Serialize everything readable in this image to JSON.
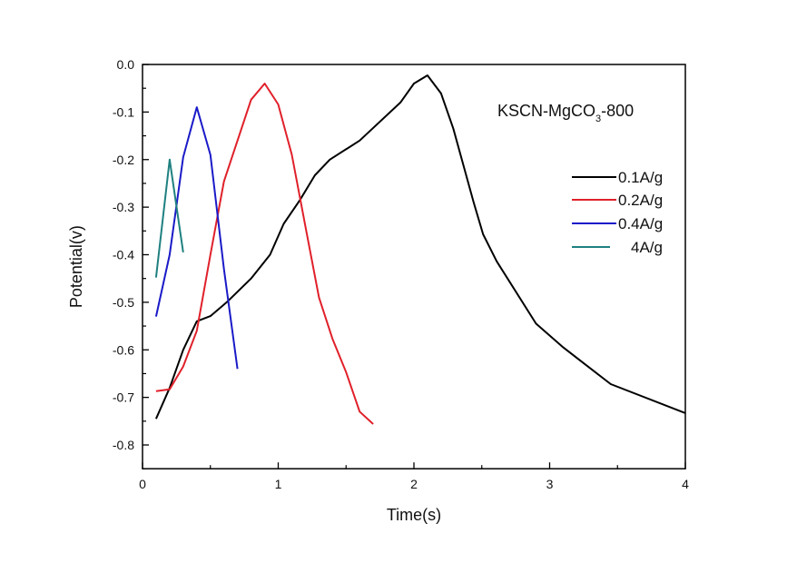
{
  "chart_data": {
    "type": "line",
    "title": "",
    "xlabel": "Time(s)",
    "ylabel": "Potential(v)",
    "xlim": [
      0,
      4
    ],
    "ylim": [
      -0.85,
      0.0
    ],
    "xticks": [
      0,
      1,
      2,
      3,
      4
    ],
    "xtick_labels": [
      "0",
      "1",
      "2",
      "3",
      "4"
    ],
    "yticks": [
      0.0,
      -0.1,
      -0.2,
      -0.3,
      -0.4,
      -0.5,
      -0.6,
      -0.7,
      -0.8
    ],
    "ytick_labels": [
      "0.0",
      "-0.1",
      "-0.2",
      "-0.3",
      "-0.4",
      "-0.5",
      "-0.6",
      "-0.7",
      "-0.8"
    ],
    "grid": false,
    "annotation": {
      "main": "KSCN-MgCO",
      "sub": "3",
      "tail": "-800"
    },
    "legend_position": "right",
    "series": [
      {
        "name": "0.1A/g",
        "color": "#000000",
        "x": [
          0.1,
          0.2,
          0.3,
          0.4,
          0.5,
          0.62,
          0.8,
          0.94,
          1.04,
          1.16,
          1.27,
          1.38,
          1.6,
          1.9,
          2.0,
          2.1,
          2.2,
          2.29,
          2.44,
          2.51,
          2.61,
          2.9,
          3.1,
          3.45,
          4.0
        ],
        "y": [
          -0.745,
          -0.68,
          -0.6,
          -0.54,
          -0.529,
          -0.5,
          -0.45,
          -0.4,
          -0.335,
          -0.285,
          -0.233,
          -0.2,
          -0.16,
          -0.08,
          -0.04,
          -0.023,
          -0.061,
          -0.135,
          -0.29,
          -0.357,
          -0.414,
          -0.545,
          -0.595,
          -0.672,
          -0.733
        ]
      },
      {
        "name": "0.2A/g",
        "color": "#e0202a",
        "x": [
          0.1,
          0.2,
          0.3,
          0.4,
          0.5,
          0.6,
          0.8,
          0.9,
          1.0,
          1.1,
          1.2,
          1.3,
          1.4,
          1.5,
          1.6,
          1.7
        ],
        "y": [
          -0.687,
          -0.683,
          -0.635,
          -0.56,
          -0.4,
          -0.246,
          -0.074,
          -0.04,
          -0.084,
          -0.19,
          -0.34,
          -0.49,
          -0.577,
          -0.647,
          -0.73,
          -0.756
        ]
      },
      {
        "name": "0.4A/g",
        "color": "#1a1ac8",
        "x": [
          0.1,
          0.2,
          0.3,
          0.4,
          0.5,
          0.6,
          0.7
        ],
        "y": [
          -0.53,
          -0.4,
          -0.195,
          -0.09,
          -0.19,
          -0.43,
          -0.64
        ]
      },
      {
        "name": "4A/g",
        "color": "#1f8080",
        "x": [
          0.1,
          0.2,
          0.3
        ],
        "y": [
          -0.448,
          -0.2,
          -0.395
        ]
      }
    ]
  }
}
